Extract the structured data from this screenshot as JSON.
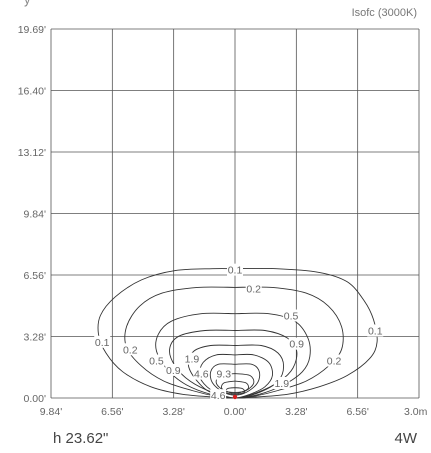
{
  "header": {
    "cut_text": "y",
    "corner_label": "Isofc (3000K)"
  },
  "footer": {
    "left_label": "h 23.62\"",
    "right_label": "4W"
  },
  "chart_data": {
    "type": "isocontour",
    "title": "",
    "xlabel": "",
    "ylabel": "",
    "x_ticks": [
      "9.84'",
      "6.56'",
      "3.28'",
      "0.00'",
      "3.28'",
      "6.56'",
      "3.0m"
    ],
    "x_tick_values": [
      -9.84,
      -6.56,
      -3.28,
      0,
      3.28,
      6.56,
      9.84
    ],
    "y_ticks": [
      "0.00'",
      "3.28'",
      "6.56'",
      "9.84'",
      "13.12'",
      "16.40'",
      "19.69'"
    ],
    "y_tick_values": [
      0,
      3.28,
      6.56,
      9.84,
      13.12,
      16.4,
      19.69
    ],
    "xlim": [
      -9.84,
      9.84
    ],
    "ylim": [
      0,
      19.69
    ],
    "grid": true,
    "source_marker": {
      "x": 0,
      "y": 0,
      "color": "#d62020"
    },
    "contours": [
      {
        "level": 0.1,
        "label": "0.1",
        "points": [
          [
            0,
            6.9
          ],
          [
            2.2,
            6.9
          ],
          [
            4.5,
            6.7
          ],
          [
            6.0,
            6.2
          ],
          [
            6.9,
            5.2
          ],
          [
            7.4,
            4.2
          ],
          [
            7.6,
            3.0
          ],
          [
            7.2,
            2.1
          ],
          [
            6.0,
            1.2
          ],
          [
            4.5,
            0.6
          ],
          [
            2.8,
            0.2
          ],
          [
            0.8,
            0.03
          ],
          [
            0,
            0
          ],
          [
            -0.8,
            0.03
          ],
          [
            -2.8,
            0.2
          ],
          [
            -4.5,
            0.6
          ],
          [
            -6.0,
            1.4
          ],
          [
            -6.9,
            2.4
          ],
          [
            -7.3,
            3.4
          ],
          [
            -7.2,
            4.4
          ],
          [
            -6.4,
            5.4
          ],
          [
            -5.0,
            6.3
          ],
          [
            -3.2,
            6.8
          ],
          [
            -1.2,
            6.9
          ],
          [
            0,
            6.9
          ]
        ],
        "label_at": [
          [
            0,
            6.85
          ],
          [
            -7.1,
            3.0
          ],
          [
            7.5,
            3.6
          ]
        ]
      },
      {
        "level": 0.2,
        "label": "0.2",
        "points": [
          [
            0,
            5.9
          ],
          [
            2.0,
            5.9
          ],
          [
            3.8,
            5.6
          ],
          [
            5.0,
            4.9
          ],
          [
            5.7,
            3.8
          ],
          [
            5.7,
            2.6
          ],
          [
            5.0,
            1.7
          ],
          [
            3.8,
            0.9
          ],
          [
            2.3,
            0.4
          ],
          [
            0.8,
            0.05
          ],
          [
            0,
            0
          ],
          [
            -0.8,
            0.05
          ],
          [
            -2.3,
            0.4
          ],
          [
            -3.8,
            0.9
          ],
          [
            -5.0,
            1.7
          ],
          [
            -5.8,
            2.7
          ],
          [
            -5.8,
            3.8
          ],
          [
            -5.1,
            4.9
          ],
          [
            -3.9,
            5.6
          ],
          [
            -2.0,
            5.9
          ],
          [
            0,
            5.9
          ]
        ],
        "label_at": [
          [
            1.0,
            5.85
          ],
          [
            -5.6,
            2.6
          ],
          [
            5.3,
            2.0
          ]
        ]
      },
      {
        "level": 0.5,
        "label": "0.5",
        "points": [
          [
            0,
            4.5
          ],
          [
            1.8,
            4.5
          ],
          [
            3.2,
            4.1
          ],
          [
            3.9,
            3.2
          ],
          [
            4.0,
            2.2
          ],
          [
            3.6,
            1.4
          ],
          [
            2.6,
            0.7
          ],
          [
            1.3,
            0.2
          ],
          [
            0,
            0
          ],
          [
            -1.3,
            0.2
          ],
          [
            -2.6,
            0.7
          ],
          [
            -3.6,
            1.5
          ],
          [
            -4.2,
            2.5
          ],
          [
            -4.1,
            3.4
          ],
          [
            -3.4,
            4.1
          ],
          [
            -1.8,
            4.5
          ],
          [
            0,
            4.5
          ]
        ],
        "label_at": [
          [
            3.0,
            4.4
          ],
          [
            -4.2,
            2.0
          ]
        ]
      },
      {
        "level": 0.9,
        "label": "0.9",
        "points": [
          [
            0,
            3.6
          ],
          [
            1.6,
            3.6
          ],
          [
            2.8,
            3.2
          ],
          [
            3.3,
            2.5
          ],
          [
            3.1,
            1.6
          ],
          [
            2.4,
            0.9
          ],
          [
            1.2,
            0.3
          ],
          [
            0,
            0
          ],
          [
            -1.2,
            0.3
          ],
          [
            -2.4,
            0.9
          ],
          [
            -3.2,
            1.7
          ],
          [
            -3.5,
            2.6
          ],
          [
            -3.0,
            3.3
          ],
          [
            -1.6,
            3.6
          ],
          [
            0,
            3.6
          ]
        ],
        "label_at": [
          [
            3.3,
            2.9
          ],
          [
            -3.3,
            1.5
          ]
        ]
      },
      {
        "level": 1.9,
        "label": "1.9",
        "points": [
          [
            0,
            2.8
          ],
          [
            1.4,
            2.8
          ],
          [
            2.3,
            2.4
          ],
          [
            2.6,
            1.7
          ],
          [
            2.3,
            0.9
          ],
          [
            1.3,
            0.3
          ],
          [
            0,
            0
          ],
          [
            -1.3,
            0.3
          ],
          [
            -2.1,
            1.0
          ],
          [
            -2.5,
            1.8
          ],
          [
            -2.2,
            2.5
          ],
          [
            -1.3,
            2.8
          ],
          [
            0,
            2.8
          ]
        ],
        "label_at": [
          [
            -2.3,
            2.1
          ],
          [
            2.5,
            0.8
          ]
        ]
      },
      {
        "level": 4.6,
        "label": "4.6",
        "points": [
          [
            0,
            2.3
          ],
          [
            1.0,
            2.3
          ],
          [
            1.8,
            1.9
          ],
          [
            2.0,
            1.2
          ],
          [
            1.6,
            0.6
          ],
          [
            0.8,
            0.2
          ],
          [
            0,
            0
          ],
          [
            -0.8,
            0.2
          ],
          [
            -1.5,
            0.6
          ],
          [
            -1.9,
            1.2
          ],
          [
            -1.7,
            1.9
          ],
          [
            -1.0,
            2.3
          ],
          [
            0,
            2.3
          ]
        ],
        "label_at": [
          [
            -1.8,
            1.3
          ],
          [
            -0.9,
            0.15
          ]
        ]
      },
      {
        "level": 9.3,
        "label": "9.3",
        "points": [
          [
            0,
            1.8
          ],
          [
            0.9,
            1.8
          ],
          [
            1.3,
            1.4
          ],
          [
            1.2,
            0.8
          ],
          [
            0.6,
            0.3
          ],
          [
            0,
            0.15
          ],
          [
            -0.6,
            0.3
          ],
          [
            -1.2,
            0.8
          ],
          [
            -1.3,
            1.4
          ],
          [
            -0.9,
            1.8
          ],
          [
            0,
            1.8
          ]
        ],
        "label_at": [
          [
            -0.6,
            1.3
          ]
        ]
      },
      {
        "level": 20,
        "label": "",
        "points": [
          [
            0,
            1.3
          ],
          [
            0.8,
            1.2
          ],
          [
            1.0,
            0.8
          ],
          [
            0.6,
            0.4
          ],
          [
            0,
            0.3
          ],
          [
            -0.6,
            0.4
          ],
          [
            -1.0,
            0.8
          ],
          [
            -0.8,
            1.2
          ],
          [
            0,
            1.3
          ]
        ],
        "label_at": []
      },
      {
        "level": 40,
        "label": "",
        "points": [
          [
            0,
            0.9
          ],
          [
            0.6,
            0.8
          ],
          [
            0.7,
            0.5
          ],
          [
            0.3,
            0.3
          ],
          [
            0,
            0.25
          ],
          [
            -0.3,
            0.3
          ],
          [
            -0.7,
            0.5
          ],
          [
            -0.6,
            0.8
          ],
          [
            0,
            0.9
          ]
        ],
        "label_at": []
      },
      {
        "level": 80,
        "label": "",
        "points": [
          [
            0,
            0.55
          ],
          [
            0.4,
            0.5
          ],
          [
            0.5,
            0.3
          ],
          [
            0,
            0.2
          ],
          [
            -0.5,
            0.3
          ],
          [
            -0.4,
            0.5
          ],
          [
            0,
            0.55
          ]
        ],
        "label_at": []
      }
    ]
  }
}
